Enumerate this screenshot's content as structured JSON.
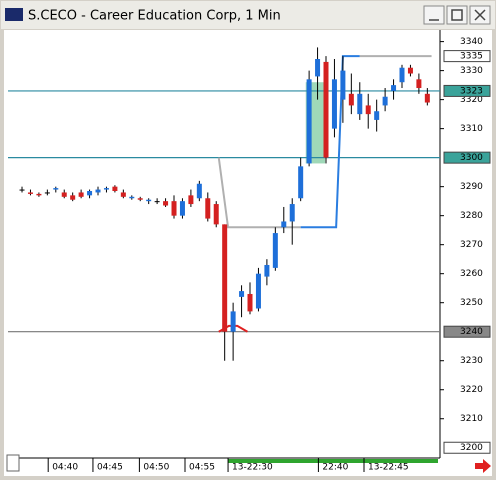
{
  "chart_data": {
    "type": "candlestick",
    "title": "S.CECO - Career Education Corp, 1 Min",
    "x": [
      0,
      1,
      2,
      3,
      4,
      5,
      6,
      7,
      8,
      9,
      10,
      11,
      12,
      13,
      14,
      15,
      16,
      17,
      18,
      19,
      20,
      21,
      22,
      23,
      24,
      25,
      26,
      27,
      28,
      29,
      30,
      31,
      32,
      33,
      34,
      35,
      36,
      37,
      38,
      39,
      40,
      41,
      42,
      43,
      44,
      45,
      46,
      47,
      48
    ],
    "open": [
      3289,
      3288,
      3287.5,
      3288,
      3289,
      3288,
      3287,
      3288,
      3287,
      3288,
      3289,
      3290,
      3288,
      3286,
      3286,
      3285,
      3285,
      3285,
      3285,
      3280,
      3287,
      3286,
      3286,
      3284,
      3277,
      3240,
      3252,
      3253,
      3248,
      3259,
      3262,
      3276,
      3278,
      3286,
      3298,
      3328,
      3333,
      3310,
      3320,
      3322,
      3315,
      3318,
      3313,
      3318,
      3323,
      3326,
      3331,
      3327,
      3322
    ],
    "high": [
      3290,
      3289,
      3288,
      3289,
      3290,
      3289,
      3288,
      3289,
      3289,
      3290,
      3290,
      3290.5,
      3289,
      3287,
      3286.5,
      3286,
      3286,
      3286,
      3287,
      3286,
      3289,
      3292,
      3288,
      3285,
      3277,
      3250,
      3256,
      3257,
      3262,
      3265,
      3276,
      3283,
      3286,
      3300,
      3330,
      3338,
      3335,
      3334,
      3335,
      3329,
      3326,
      3322,
      3320,
      3324,
      3327,
      3332,
      3332,
      3329,
      3324
    ],
    "low": [
      3288,
      3287,
      3286.5,
      3287,
      3288,
      3286,
      3285,
      3286,
      3286,
      3287,
      3288,
      3288,
      3286,
      3285.5,
      3285,
      3284,
      3284,
      3283,
      3279,
      3279,
      3283,
      3285,
      3278,
      3276,
      3230,
      3230,
      3245,
      3246,
      3247,
      3256,
      3261,
      3274,
      3270,
      3285,
      3297,
      3320,
      3298,
      3307,
      3312,
      3315,
      3313,
      3310,
      3309,
      3316,
      3320,
      3324,
      3328,
      3322,
      3318
    ],
    "close": [
      3289,
      3287.5,
      3287,
      3288,
      3289.5,
      3286.5,
      3285.5,
      3286.5,
      3288.5,
      3289,
      3289.5,
      3288.5,
      3286.5,
      3286.5,
      3285.5,
      3285.5,
      3285,
      3283.5,
      3280,
      3285,
      3284,
      3291,
      3279,
      3277,
      3240,
      3247,
      3254,
      3247,
      3260,
      3263,
      3274,
      3278,
      3284,
      3297,
      3327,
      3334,
      3300,
      3327,
      3330,
      3318,
      3322,
      3315,
      3316,
      3321,
      3325,
      3331,
      3329,
      3324,
      3319
    ],
    "up_color": "#1e6fd9",
    "down_color": "#d42020",
    "xlim": [
      -1.66,
      49.5
    ],
    "ylim": [
      3197.5,
      3344
    ],
    "xticks": [
      {
        "value": 3.1,
        "label": "04:40"
      },
      {
        "value": 8.4,
        "label": "04:45"
      },
      {
        "value": 13.9,
        "label": "04:50"
      },
      {
        "value": 19.3,
        "label": "04:55"
      },
      {
        "value": 24.4,
        "label": "13-22:30"
      },
      {
        "value": 35.1,
        "label": "22:40"
      },
      {
        "value": 40.5,
        "label": "13-22:45"
      }
    ],
    "yticks": [
      3340,
      3330,
      3320,
      3310,
      3290,
      3280,
      3270,
      3260,
      3250,
      3230,
      3220,
      3210
    ],
    "levels": [
      {
        "value": 3323,
        "color": "#2a8aa0"
      },
      {
        "value": 3300,
        "color": "#2a8aa0"
      },
      {
        "value": 3240,
        "color": "#777777"
      }
    ],
    "tags": [
      {
        "value": 3335,
        "color": "#ffffff"
      },
      {
        "value": 3323,
        "color": "#3aa39a"
      },
      {
        "value": 3300,
        "color": "#3aa39a"
      },
      {
        "value": 3240,
        "color": "#888888"
      },
      {
        "value": 3200,
        "color": "#ffffff"
      }
    ],
    "lines": [
      {
        "color": "#b0b0b0",
        "x": [
          23.3,
          24.4,
          33
        ],
        "values": [
          3300,
          3276,
          3276
        ]
      },
      {
        "color": "#2a7de0",
        "x": [
          33,
          37.2,
          38,
          40
        ],
        "values": [
          3276,
          3276,
          3335,
          3335
        ]
      },
      {
        "color": "#b0b0b0",
        "x": [
          40,
          48.5
        ],
        "values": [
          3335,
          3335
        ]
      },
      {
        "color": "#e02020",
        "x": [
          23.3,
          24.5,
          25.5,
          26.7
        ],
        "values": [
          3240,
          3242,
          3242,
          3240
        ]
      }
    ],
    "highlight": {
      "x": [
        33.6,
        35.9
      ],
      "values": [
        3298,
        3326
      ],
      "color": "#9fd8b8"
    }
  }
}
